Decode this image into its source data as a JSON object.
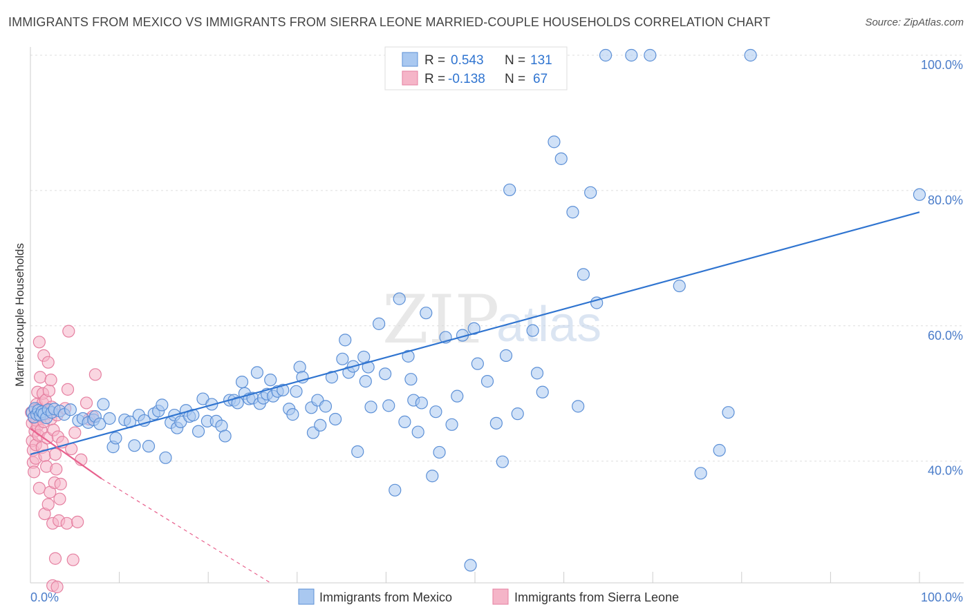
{
  "title": "IMMIGRANTS FROM MEXICO VS IMMIGRANTS FROM SIERRA LEONE MARRIED-COUPLE HOUSEHOLDS CORRELATION CHART",
  "source": "Source: ZipAtlas.com",
  "watermark": {
    "part1": "ZIP",
    "part2": "atlas"
  },
  "colors": {
    "blue_fill": "#a9c8f0",
    "blue_stroke": "#5b8fd6",
    "blue_line": "#2f74d0",
    "pink_fill": "#f5b5c8",
    "pink_stroke": "#e57fa0",
    "pink_line": "#e8618d",
    "grid": "#dddddd",
    "tick_text": "#4a7cc9"
  },
  "stats_box": {
    "rows": [
      {
        "r_label": "R =",
        "r_value": "0.543",
        "n_label": "N =",
        "n_value": "131"
      },
      {
        "r_label": "R =",
        "r_value": "-0.138",
        "n_label": "N =",
        "n_value": "67"
      }
    ]
  },
  "chart_data": {
    "type": "scatter",
    "title": "IMMIGRANTS FROM MEXICO VS IMMIGRANTS FROM SIERRA LEONE MARRIED-COUPLE HOUSEHOLDS CORRELATION CHART",
    "xlabel": "",
    "ylabel": "Married-couple Households",
    "x_tick_labels": [
      "0.0%",
      "100.0%"
    ],
    "y_tick_labels": [
      "40.0%",
      "60.0%",
      "80.0%",
      "100.0%"
    ],
    "y_ticks": [
      40,
      60,
      80,
      100
    ],
    "xlim": [
      0,
      100
    ],
    "ylim": [
      22,
      100
    ],
    "grid": true,
    "legend_position": "bottom-center",
    "series": [
      {
        "name": "Immigrants from Mexico",
        "color": "#a9c8f0",
        "r": 0.543,
        "n": 131,
        "trend": {
          "x0": 0,
          "y0": 41.0,
          "x1": 100,
          "y1": 76.8
        },
        "points": [
          [
            0.2,
            47.2
          ],
          [
            0.4,
            46.5
          ],
          [
            0.5,
            47.8
          ],
          [
            0.7,
            46.9
          ],
          [
            0.9,
            47.5
          ],
          [
            1.1,
            46.8
          ],
          [
            1.3,
            47.3
          ],
          [
            1.5,
            47.0
          ],
          [
            1.8,
            46.4
          ],
          [
            2.0,
            47.6
          ],
          [
            2.4,
            47.2
          ],
          [
            2.7,
            47.7
          ],
          [
            3.3,
            47.4
          ],
          [
            3.8,
            46.9
          ],
          [
            4.5,
            47.6
          ],
          [
            5.4,
            46.0
          ],
          [
            5.9,
            46.3
          ],
          [
            6.5,
            45.7
          ],
          [
            7.1,
            46.1
          ],
          [
            7.3,
            46.6
          ],
          [
            7.8,
            45.5
          ],
          [
            8.2,
            48.4
          ],
          [
            8.9,
            46.3
          ],
          [
            9.3,
            42.1
          ],
          [
            9.6,
            43.4
          ],
          [
            10.6,
            46.1
          ],
          [
            11.2,
            45.8
          ],
          [
            11.7,
            42.3
          ],
          [
            12.2,
            46.8
          ],
          [
            12.8,
            46.0
          ],
          [
            13.3,
            42.2
          ],
          [
            13.9,
            47.0
          ],
          [
            14.4,
            47.4
          ],
          [
            14.8,
            48.3
          ],
          [
            15.2,
            40.5
          ],
          [
            15.8,
            45.7
          ],
          [
            16.2,
            46.8
          ],
          [
            16.5,
            44.9
          ],
          [
            16.9,
            45.8
          ],
          [
            17.5,
            47.5
          ],
          [
            17.9,
            46.6
          ],
          [
            18.3,
            46.8
          ],
          [
            18.9,
            44.4
          ],
          [
            19.4,
            49.2
          ],
          [
            19.9,
            45.9
          ],
          [
            20.4,
            48.4
          ],
          [
            20.9,
            45.9
          ],
          [
            21.5,
            45.2
          ],
          [
            21.9,
            43.7
          ],
          [
            22.4,
            49.0
          ],
          [
            22.9,
            49.0
          ],
          [
            23.3,
            48.6
          ],
          [
            23.8,
            51.7
          ],
          [
            24.1,
            50.0
          ],
          [
            24.6,
            49.2
          ],
          [
            25.0,
            49.3
          ],
          [
            25.5,
            53.1
          ],
          [
            25.8,
            48.5
          ],
          [
            26.2,
            49.3
          ],
          [
            26.6,
            49.9
          ],
          [
            27.0,
            52.0
          ],
          [
            27.3,
            49.6
          ],
          [
            27.8,
            50.3
          ],
          [
            28.4,
            50.5
          ],
          [
            29.1,
            47.7
          ],
          [
            29.5,
            46.9
          ],
          [
            29.9,
            50.3
          ],
          [
            30.3,
            53.9
          ],
          [
            30.6,
            52.4
          ],
          [
            31.6,
            47.9
          ],
          [
            31.8,
            44.2
          ],
          [
            32.3,
            49.0
          ],
          [
            32.6,
            45.3
          ],
          [
            33.2,
            48.1
          ],
          [
            33.9,
            52.4
          ],
          [
            34.3,
            46.2
          ],
          [
            35.1,
            55.1
          ],
          [
            35.4,
            57.9
          ],
          [
            35.8,
            53.1
          ],
          [
            36.3,
            54.0
          ],
          [
            36.8,
            41.4
          ],
          [
            37.5,
            55.4
          ],
          [
            37.7,
            51.8
          ],
          [
            38.0,
            53.9
          ],
          [
            38.3,
            48.0
          ],
          [
            39.2,
            60.3
          ],
          [
            39.9,
            52.9
          ],
          [
            40.3,
            48.2
          ],
          [
            41.0,
            35.7
          ],
          [
            41.5,
            64.0
          ],
          [
            42.1,
            45.8
          ],
          [
            42.5,
            55.5
          ],
          [
            42.8,
            52.1
          ],
          [
            43.1,
            49.0
          ],
          [
            43.6,
            44.3
          ],
          [
            44.0,
            48.6
          ],
          [
            44.5,
            61.9
          ],
          [
            45.2,
            37.8
          ],
          [
            45.6,
            47.3
          ],
          [
            46.0,
            41.3
          ],
          [
            46.7,
            58.3
          ],
          [
            47.4,
            45.4
          ],
          [
            48.0,
            49.6
          ],
          [
            48.6,
            58.6
          ],
          [
            49.5,
            24.6
          ],
          [
            49.9,
            59.6
          ],
          [
            50.3,
            54.4
          ],
          [
            51.4,
            51.8
          ],
          [
            52.4,
            45.6
          ],
          [
            53.1,
            39.9
          ],
          [
            53.5,
            55.6
          ],
          [
            53.9,
            80.1
          ],
          [
            54.8,
            47.0
          ],
          [
            56.5,
            59.3
          ],
          [
            57.0,
            53.0
          ],
          [
            57.6,
            50.2
          ],
          [
            58.1,
            100
          ],
          [
            58.6,
            100
          ],
          [
            58.9,
            87.2
          ],
          [
            59.7,
            84.7
          ],
          [
            61.0,
            76.8
          ],
          [
            61.6,
            48.1
          ],
          [
            62.2,
            67.6
          ],
          [
            63.0,
            79.7
          ],
          [
            63.7,
            63.4
          ],
          [
            64.7,
            100
          ],
          [
            67.6,
            100
          ],
          [
            69.7,
            100
          ],
          [
            73.0,
            65.9
          ],
          [
            75.4,
            38.2
          ],
          [
            77.5,
            41.6
          ],
          [
            78.5,
            47.2
          ],
          [
            81.0,
            100
          ],
          [
            100.0,
            79.4
          ]
        ]
      },
      {
        "name": "Immigrants from Sierra Leone",
        "color": "#f5b5c8",
        "r": -0.138,
        "n": 67,
        "trend": {
          "x0": 0,
          "y0": 44.8,
          "x1": 8.0,
          "y1": 37.4,
          "dash_x1": 27.0,
          "dash_y1": 22.0
        },
        "points": [
          [
            0.1,
            47.2
          ],
          [
            0.2,
            45.6
          ],
          [
            0.2,
            43.0
          ],
          [
            0.3,
            41.6
          ],
          [
            0.3,
            39.8
          ],
          [
            0.4,
            38.4
          ],
          [
            0.4,
            46.4
          ],
          [
            0.5,
            47.6
          ],
          [
            0.5,
            44.4
          ],
          [
            0.6,
            42.4
          ],
          [
            0.6,
            40.4
          ],
          [
            0.7,
            48.4
          ],
          [
            0.7,
            46.0
          ],
          [
            0.8,
            45.2
          ],
          [
            0.8,
            50.2
          ],
          [
            0.9,
            47.8
          ],
          [
            0.9,
            43.8
          ],
          [
            1.0,
            36.0
          ],
          [
            1.0,
            57.6
          ],
          [
            1.1,
            52.4
          ],
          [
            1.2,
            46.6
          ],
          [
            1.2,
            44.6
          ],
          [
            1.3,
            42.0
          ],
          [
            1.4,
            48.6
          ],
          [
            1.4,
            50.0
          ],
          [
            1.5,
            45.8
          ],
          [
            1.5,
            55.6
          ],
          [
            1.6,
            40.8
          ],
          [
            1.6,
            32.2
          ],
          [
            1.7,
            49.0
          ],
          [
            1.8,
            47.0
          ],
          [
            1.8,
            39.2
          ],
          [
            1.9,
            43.4
          ],
          [
            2.0,
            54.6
          ],
          [
            2.0,
            33.6
          ],
          [
            2.1,
            50.4
          ],
          [
            2.2,
            35.4
          ],
          [
            2.3,
            46.2
          ],
          [
            2.3,
            52.0
          ],
          [
            2.4,
            48.0
          ],
          [
            2.5,
            30.8
          ],
          [
            2.5,
            21.6
          ],
          [
            2.6,
            44.6
          ],
          [
            2.7,
            36.8
          ],
          [
            2.8,
            41.0
          ],
          [
            2.8,
            25.6
          ],
          [
            2.9,
            38.8
          ],
          [
            3.0,
            46.8
          ],
          [
            3.0,
            21.4
          ],
          [
            3.1,
            43.6
          ],
          [
            3.2,
            31.2
          ],
          [
            3.3,
            34.4
          ],
          [
            3.4,
            36.6
          ],
          [
            3.6,
            42.8
          ],
          [
            3.9,
            47.8
          ],
          [
            4.1,
            30.8
          ],
          [
            4.2,
            50.6
          ],
          [
            4.3,
            59.2
          ],
          [
            4.6,
            41.8
          ],
          [
            4.8,
            25.4
          ],
          [
            5.0,
            44.2
          ],
          [
            5.3,
            31.0
          ],
          [
            5.7,
            40.2
          ],
          [
            6.3,
            48.6
          ],
          [
            6.6,
            46.2
          ],
          [
            7.0,
            46.6
          ],
          [
            7.3,
            52.8
          ]
        ]
      }
    ]
  },
  "legend": {
    "items": [
      {
        "label": "Immigrants from Mexico"
      },
      {
        "label": "Immigrants from Sierra Leone"
      }
    ]
  }
}
